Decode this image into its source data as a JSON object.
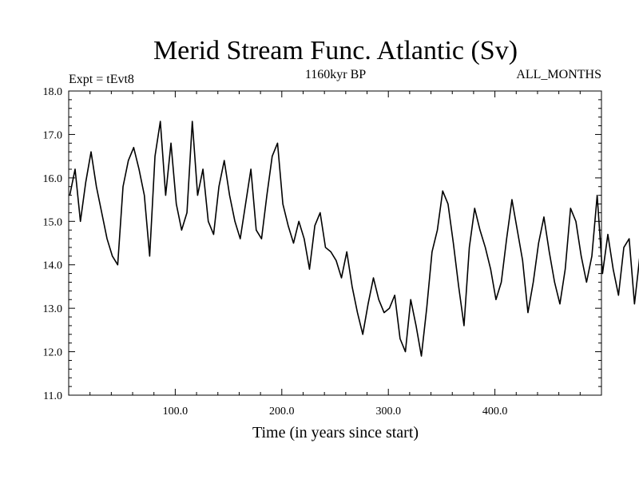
{
  "chart_data": {
    "type": "line",
    "title": "Merid Stream Func. Atlantic (Sv)",
    "subtitle_left": "Expt = tEvt8",
    "subtitle_center": "1160kyr BP",
    "subtitle_right": "ALL_MONTHS",
    "xlabel": "Time (in years since start)",
    "ylabel": "",
    "xlim": [
      0,
      500
    ],
    "ylim": [
      11.0,
      18.0
    ],
    "x_ticks": [
      100,
      200,
      300,
      400
    ],
    "x_tick_labels": [
      "100.0",
      "200.0",
      "300.0",
      "400.0"
    ],
    "y_ticks": [
      11,
      12,
      13,
      14,
      15,
      16,
      17,
      18
    ],
    "y_tick_labels": [
      "11.0",
      "12.0",
      "13.0",
      "14.0",
      "15.0",
      "16.0",
      "17.0",
      "18.0"
    ],
    "grid": false,
    "series": [
      {
        "name": "Atlantic MOC",
        "x_start": 1,
        "x_step": 5,
        "values": [
          15.6,
          16.2,
          15.0,
          15.9,
          16.6,
          15.8,
          15.2,
          14.6,
          14.2,
          14.0,
          15.8,
          16.4,
          16.7,
          16.2,
          15.6,
          14.2,
          16.5,
          17.3,
          15.6,
          16.8,
          15.4,
          14.8,
          15.2,
          17.3,
          15.6,
          16.2,
          15.0,
          14.7,
          15.8,
          16.4,
          15.6,
          15.0,
          14.6,
          15.4,
          16.2,
          14.8,
          14.6,
          15.6,
          16.5,
          16.8,
          15.4,
          14.9,
          14.5,
          15.0,
          14.6,
          13.9,
          14.9,
          15.2,
          14.4,
          14.3,
          14.1,
          13.7,
          14.3,
          13.5,
          12.9,
          12.4,
          13.1,
          13.7,
          13.2,
          12.9,
          13.0,
          13.3,
          12.3,
          12.0,
          13.2,
          12.6,
          11.9,
          13.0,
          14.3,
          14.8,
          15.7,
          15.4,
          14.5,
          13.5,
          12.6,
          14.4,
          15.3,
          14.8,
          14.4,
          13.9,
          13.2,
          13.6,
          14.6,
          15.5,
          14.8,
          14.1,
          12.9,
          13.6,
          14.5,
          15.1,
          14.3,
          13.6,
          13.1,
          13.9,
          15.3,
          15.0,
          14.2,
          13.6,
          14.2,
          15.6,
          13.8,
          14.7,
          13.9,
          13.3,
          14.4,
          14.6,
          13.1,
          14.2,
          14.5,
          13.6,
          13.9,
          14.8,
          14.0,
          12.8,
          14.0,
          15.1,
          14.2,
          13.3,
          13.9,
          14.4,
          13.7,
          13.1,
          12.7,
          13.4,
          12.6,
          13.5,
          14.4,
          13.9,
          13.2,
          12.9,
          14.1,
          14.6,
          13.9,
          13.4,
          13.9,
          14.7,
          13.8,
          13.2,
          13.6,
          14.5,
          14.3,
          13.2,
          12.8,
          13.7,
          14.6,
          14.1,
          13.3,
          12.6,
          13.4,
          14.0,
          13.3,
          12.6,
          13.2,
          14.3,
          13.5,
          13.0,
          13.8,
          14.6,
          13.9,
          13.1,
          12.7,
          13.4,
          13.9,
          13.1,
          12.8,
          13.5,
          14.2,
          13.5,
          12.9,
          13.6,
          14.2,
          13.7,
          13.3,
          13.9,
          14.6,
          14.1,
          13.4,
          14.2,
          14.8,
          14.4,
          13.7,
          14.0,
          14.3,
          13.9,
          13.4,
          14.2,
          14.6,
          13.6,
          13.2,
          13.8,
          14.5,
          14.1,
          13.5,
          13.9,
          14.4,
          13.8,
          13.4,
          14.1,
          14.6,
          14.2,
          13.7,
          14.3,
          14.8,
          14.4,
          14.1,
          14.8,
          15.0,
          14.9,
          14.6,
          14.2,
          13.9,
          14.4,
          13.7,
          14.3,
          15.2
        ]
      }
    ]
  }
}
